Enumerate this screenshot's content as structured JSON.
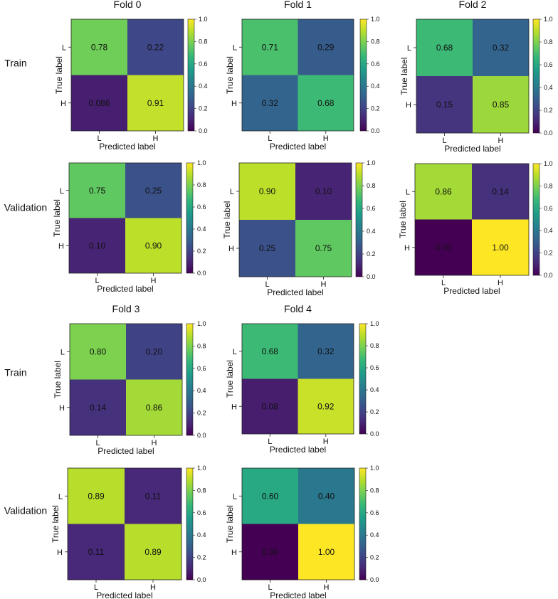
{
  "colors": {
    "viridis": [
      "#440154",
      "#482878",
      "#3e4989",
      "#31688e",
      "#26828e",
      "#1f9e89",
      "#35b779",
      "#6ece58",
      "#b5de2b",
      "#fde725"
    ],
    "text": "#111111",
    "frame": "#222222"
  },
  "row_labels": [
    "Train",
    "Validation"
  ],
  "chart_data": [
    {
      "type": "heatmap",
      "fold": "Fold 0",
      "set": "Train",
      "title": "Fold 0",
      "xlabel": "Predicted label",
      "ylabel": "True label",
      "x_ticks": [
        "L",
        "H"
      ],
      "y_ticks": [
        "L",
        "H"
      ],
      "values": [
        [
          0.78,
          0.22
        ],
        [
          0.086,
          0.91
        ]
      ],
      "labels": [
        [
          "0.78",
          "0.22"
        ],
        [
          "0.086",
          "0.91"
        ]
      ],
      "colorbar": {
        "range": [
          0,
          1
        ],
        "ticks": [
          "0.0",
          "0.2",
          "0.4",
          "0.6",
          "0.8",
          "1.0"
        ]
      }
    },
    {
      "type": "heatmap",
      "fold": "Fold 1",
      "set": "Train",
      "title": "Fold 1",
      "xlabel": "Predicted label",
      "ylabel": "True label",
      "x_ticks": [
        "L",
        "H"
      ],
      "y_ticks": [
        "L",
        "H"
      ],
      "values": [
        [
          0.71,
          0.29
        ],
        [
          0.32,
          0.68
        ]
      ],
      "labels": [
        [
          "0.71",
          "0.29"
        ],
        [
          "0.32",
          "0.68"
        ]
      ],
      "colorbar": {
        "range": [
          0,
          1
        ],
        "ticks": [
          "0.0",
          "0.2",
          "0.4",
          "0.6",
          "0.8",
          "1.0"
        ]
      }
    },
    {
      "type": "heatmap",
      "fold": "Fold 2",
      "set": "Train",
      "title": "Fold 2",
      "xlabel": "Predicted label",
      "ylabel": "True label",
      "x_ticks": [
        "L",
        "H"
      ],
      "y_ticks": [
        "L",
        "H"
      ],
      "values": [
        [
          0.68,
          0.32
        ],
        [
          0.15,
          0.85
        ]
      ],
      "labels": [
        [
          "0.68",
          "0.32"
        ],
        [
          "0.15",
          "0.85"
        ]
      ],
      "colorbar": {
        "range": [
          0,
          1
        ],
        "ticks": [
          "0.0",
          "0.2",
          "0.4",
          "0.6",
          "0.8",
          "1.0"
        ]
      }
    },
    {
      "type": "heatmap",
      "fold": "Fold 0",
      "set": "Validation",
      "title": "",
      "xlabel": "Predicted label",
      "ylabel": "True label",
      "x_ticks": [
        "L",
        "H"
      ],
      "y_ticks": [
        "L",
        "H"
      ],
      "values": [
        [
          0.75,
          0.25
        ],
        [
          0.1,
          0.9
        ]
      ],
      "labels": [
        [
          "0.75",
          "0.25"
        ],
        [
          "0.10",
          "0.90"
        ]
      ],
      "colorbar": {
        "range": [
          0,
          1
        ],
        "ticks": [
          "0.0",
          "0.2",
          "0.4",
          "0.6",
          "0.8",
          "1.0"
        ]
      }
    },
    {
      "type": "heatmap",
      "fold": "Fold 1",
      "set": "Validation",
      "title": "",
      "xlabel": "Predicted label",
      "ylabel": "True label",
      "x_ticks": [
        "L",
        "H"
      ],
      "y_ticks": [
        "L",
        "H"
      ],
      "values": [
        [
          0.9,
          0.1
        ],
        [
          0.25,
          0.75
        ]
      ],
      "labels": [
        [
          "0.90",
          "0.10"
        ],
        [
          "0.25",
          "0.75"
        ]
      ],
      "colorbar": {
        "range": [
          0,
          1
        ],
        "ticks": [
          "0.0",
          "0.2",
          "0.4",
          "0.6",
          "0.8",
          "1.0"
        ]
      }
    },
    {
      "type": "heatmap",
      "fold": "Fold 2",
      "set": "Validation",
      "title": "",
      "xlabel": "Predicted label",
      "ylabel": "True label",
      "x_ticks": [
        "L",
        "H"
      ],
      "y_ticks": [
        "L",
        "H"
      ],
      "values": [
        [
          0.86,
          0.14
        ],
        [
          0.0,
          1.0
        ]
      ],
      "labels": [
        [
          "0.86",
          "0.14"
        ],
        [
          "0.00",
          "1.00"
        ]
      ],
      "colorbar": {
        "range": [
          0,
          1
        ],
        "ticks": [
          "0.0",
          "0.2",
          "0.4",
          "0.6",
          "0.8",
          "1.0"
        ]
      }
    },
    {
      "type": "heatmap",
      "fold": "Fold 3",
      "set": "Train",
      "title": "Fold 3",
      "xlabel": "Predicted label",
      "ylabel": "True label",
      "x_ticks": [
        "L",
        "H"
      ],
      "y_ticks": [
        "L",
        "H"
      ],
      "values": [
        [
          0.8,
          0.2
        ],
        [
          0.14,
          0.86
        ]
      ],
      "labels": [
        [
          "0.80",
          "0.20"
        ],
        [
          "0.14",
          "0.86"
        ]
      ],
      "colorbar": {
        "range": [
          0,
          1
        ],
        "ticks": [
          "0.0",
          "0.2",
          "0.4",
          "0.6",
          "0.8",
          "1.0"
        ]
      }
    },
    {
      "type": "heatmap",
      "fold": "Fold 4",
      "set": "Train",
      "title": "Fold 4",
      "xlabel": "Predicted label",
      "ylabel": "True label",
      "x_ticks": [
        "L",
        "H"
      ],
      "y_ticks": [
        "L",
        "H"
      ],
      "values": [
        [
          0.68,
          0.32
        ],
        [
          0.08,
          0.92
        ]
      ],
      "labels": [
        [
          "0.68",
          "0.32"
        ],
        [
          "0.08",
          "0.92"
        ]
      ],
      "colorbar": {
        "range": [
          0,
          1
        ],
        "ticks": [
          "0.0",
          "0.2",
          "0.4",
          "0.6",
          "0.8",
          "1.0"
        ]
      }
    },
    {
      "type": "heatmap",
      "fold": "Fold 3",
      "set": "Validation",
      "title": "",
      "xlabel": "Predicted label",
      "ylabel": "True label",
      "x_ticks": [
        "L",
        "H"
      ],
      "y_ticks": [
        "L",
        "H"
      ],
      "values": [
        [
          0.89,
          0.11
        ],
        [
          0.11,
          0.89
        ]
      ],
      "labels": [
        [
          "0.89",
          "0.11"
        ],
        [
          "0.11",
          "0.89"
        ]
      ],
      "colorbar": {
        "range": [
          0,
          1
        ],
        "ticks": [
          "0.0",
          "0.2",
          "0.4",
          "0.6",
          "0.8",
          "1.0"
        ]
      }
    },
    {
      "type": "heatmap",
      "fold": "Fold 4",
      "set": "Validation",
      "title": "",
      "xlabel": "Predicted label",
      "ylabel": "True label",
      "x_ticks": [
        "L",
        "H"
      ],
      "y_ticks": [
        "L",
        "H"
      ],
      "values": [
        [
          0.6,
          0.4
        ],
        [
          0.0,
          1.0
        ]
      ],
      "labels": [
        [
          "0.60",
          "0.40"
        ],
        [
          "0.00",
          "1.00"
        ]
      ],
      "colorbar": {
        "range": [
          0,
          1
        ],
        "ticks": [
          "0.0",
          "0.2",
          "0.4",
          "0.6",
          "0.8",
          "1.0"
        ]
      }
    }
  ]
}
